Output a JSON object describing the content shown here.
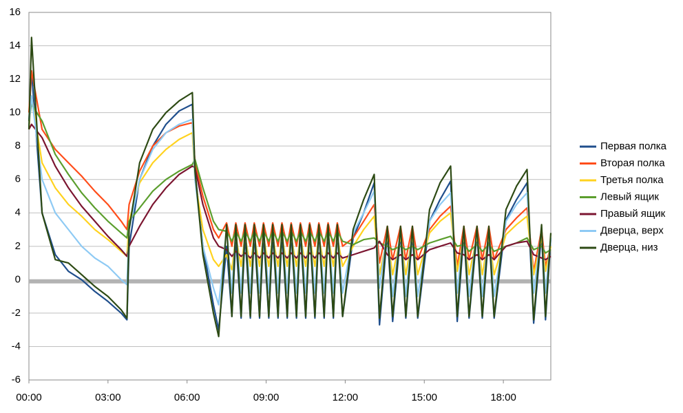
{
  "chart_data": {
    "type": "line",
    "x": [
      0,
      0.1,
      0.5,
      1,
      1.5,
      2,
      2.5,
      3,
      3.5,
      3.72,
      3.8,
      4.2,
      4.7,
      5.2,
      5.7,
      6.2,
      6.3,
      6.6,
      7.0,
      7.2,
      7.5,
      7.7,
      7.85,
      8.05,
      8.2,
      8.4,
      8.55,
      8.75,
      8.9,
      9.1,
      9.25,
      9.45,
      9.6,
      9.8,
      9.95,
      10.15,
      10.3,
      10.5,
      10.65,
      10.85,
      11.0,
      11.2,
      11.35,
      11.55,
      11.7,
      11.9,
      12.3,
      12.7,
      13.1,
      13.3,
      13.6,
      13.8,
      14.1,
      14.3,
      14.55,
      14.75,
      15.2,
      15.6,
      16.0,
      16.25,
      16.5,
      16.7,
      17.0,
      17.2,
      17.45,
      17.65,
      18.1,
      18.5,
      18.9,
      19.15,
      19.45,
      19.6,
      19.8
    ],
    "xlim": [
      0,
      19.8
    ],
    "xticks": [
      {
        "value": 0,
        "label": "00:00"
      },
      {
        "value": 3,
        "label": "03:00"
      },
      {
        "value": 6,
        "label": "06:00"
      },
      {
        "value": 9,
        "label": "09:00"
      },
      {
        "value": 12,
        "label": "12:00"
      },
      {
        "value": 15,
        "label": "15:00"
      },
      {
        "value": 18,
        "label": "18:00"
      }
    ],
    "ylim": [
      -6,
      16
    ],
    "yticks": [
      -6,
      -4,
      -2,
      0,
      2,
      4,
      6,
      8,
      10,
      12,
      14,
      16
    ],
    "grid": true,
    "hline": -0.1,
    "legend": "right",
    "series": [
      {
        "name": "Первая полка",
        "color": "#1f4e8c",
        "values": [
          9.5,
          12.5,
          4,
          1.5,
          0.5,
          0,
          -0.7,
          -1.3,
          -2.0,
          -2.4,
          2,
          6,
          8,
          9.3,
          10.1,
          10.5,
          6.5,
          2,
          -1.5,
          -3.0,
          2.0,
          -2.2,
          2.5,
          -2.3,
          2.7,
          -2.3,
          2.8,
          -2.3,
          2.8,
          -2.3,
          2.8,
          -2.3,
          2.8,
          -2.3,
          2.9,
          -2.3,
          2.9,
          -2.3,
          3.0,
          -2.3,
          3.0,
          -2.3,
          3.0,
          -2.3,
          3.0,
          -2.2,
          2.5,
          4,
          5.8,
          -2.7,
          2.8,
          -2.5,
          2.8,
          -2.3,
          2.8,
          -2.3,
          3.5,
          4.8,
          5.9,
          -2.5,
          2.8,
          -2.3,
          2.8,
          -2.3,
          2.8,
          -2.3,
          3.6,
          4.8,
          5.8,
          -2.6,
          2.8,
          -2.4,
          2.5
        ]
      },
      {
        "name": "Вторая полка",
        "color": "#ff4d1a",
        "values": [
          10,
          12.5,
          9,
          7.8,
          7,
          6.2,
          5.3,
          4.5,
          3.5,
          3.0,
          4.5,
          6.5,
          8,
          8.8,
          9.2,
          9.4,
          7,
          5,
          3,
          2.5,
          3.4,
          2.0,
          3.4,
          2.0,
          3.4,
          2.0,
          3.4,
          2.0,
          3.4,
          2.0,
          3.4,
          2.0,
          3.4,
          2.0,
          3.4,
          2.0,
          3.4,
          2.0,
          3.4,
          2.0,
          3.4,
          2.0,
          3.4,
          2.0,
          3.4,
          2.0,
          2.5,
          3.5,
          4.5,
          1.0,
          3.2,
          1.2,
          3.2,
          1.2,
          3.2,
          1.2,
          3,
          3.8,
          4.4,
          0.8,
          3.2,
          1.2,
          3.2,
          1.2,
          3.2,
          1.2,
          3,
          3.7,
          4.3,
          0.5,
          3,
          0.8,
          2
        ]
      },
      {
        "name": "Третья полка",
        "color": "#ffd21f",
        "values": [
          9,
          11,
          7,
          5.5,
          4.5,
          3.8,
          3,
          2.4,
          1.7,
          1.4,
          3.5,
          5.8,
          7,
          7.8,
          8.4,
          8.8,
          6,
          3,
          1.2,
          0.8,
          1.5,
          0.6,
          2.6,
          0.8,
          2.6,
          0.8,
          2.6,
          0.8,
          2.6,
          0.8,
          2.6,
          0.8,
          2.6,
          0.8,
          2.6,
          0.8,
          2.6,
          0.8,
          2.6,
          0.8,
          2.6,
          0.8,
          2.6,
          0.8,
          2.6,
          0.8,
          2,
          3,
          3.8,
          0.3,
          2.6,
          0.3,
          2.6,
          0.3,
          2.6,
          0.3,
          2.8,
          3.5,
          4.0,
          0.5,
          2.6,
          0.3,
          2.6,
          0.3,
          2.6,
          0.3,
          2.7,
          3.3,
          3.8,
          0.3,
          2.5,
          0.5,
          2
        ]
      },
      {
        "name": "Левый ящик",
        "color": "#5b9e2d",
        "values": [
          9.5,
          10.5,
          9.5,
          7.5,
          6.3,
          5.2,
          4.3,
          3.5,
          2.8,
          2.5,
          3.5,
          4.3,
          5.3,
          6,
          6.5,
          6.9,
          7.2,
          5.5,
          3.5,
          3.0,
          2.9,
          2.3,
          2.9,
          2.3,
          2.9,
          2.3,
          2.9,
          2.3,
          2.9,
          2.3,
          2.9,
          2.3,
          2.9,
          2.3,
          2.9,
          2.3,
          2.9,
          2.3,
          2.9,
          2.3,
          2.9,
          2.3,
          2.9,
          2.3,
          2.9,
          2.3,
          2.1,
          2.4,
          2.5,
          2.2,
          2.0,
          1.8,
          2.0,
          1.8,
          2.0,
          1.8,
          2.2,
          2.4,
          2.6,
          2.0,
          2.1,
          1.7,
          2.1,
          1.7,
          2.1,
          1.7,
          2.0,
          2.2,
          2.5,
          1.8,
          2.0,
          1.6,
          1.8
        ]
      },
      {
        "name": "Правый ящик",
        "color": "#7b1530",
        "values": [
          9,
          9.3,
          8.5,
          6.8,
          5.5,
          4.4,
          3.5,
          2.6,
          1.8,
          1.4,
          2.0,
          3.2,
          4.5,
          5.5,
          6.3,
          6.8,
          6.7,
          4.5,
          2.5,
          2.0,
          1.8,
          1.4,
          1.7,
          1.4,
          1.6,
          1.3,
          1.6,
          1.3,
          1.6,
          1.3,
          1.6,
          1.3,
          1.6,
          1.3,
          1.6,
          1.3,
          1.6,
          1.3,
          1.6,
          1.3,
          1.6,
          1.3,
          1.6,
          1.3,
          1.6,
          1.3,
          1.5,
          1.7,
          1.9,
          2.3,
          1.5,
          1.2,
          1.5,
          1.2,
          1.5,
          1.2,
          1.8,
          2.0,
          2.2,
          1.6,
          1.5,
          1.2,
          1.5,
          1.2,
          1.5,
          1.2,
          2.0,
          2.2,
          2.3,
          1.5,
          1.3,
          1.2,
          1.4
        ]
      },
      {
        "name": "Дверца, верх",
        "color": "#8ecaf4",
        "values": [
          9.2,
          11,
          6,
          4,
          3,
          2,
          1.3,
          0.8,
          0,
          -0.3,
          3,
          6,
          7.8,
          8.8,
          9.3,
          9.6,
          6,
          2,
          -0.5,
          -1.5,
          3.0,
          -0.8,
          3.0,
          -0.8,
          3.0,
          -0.8,
          3.0,
          -0.8,
          3.0,
          -0.8,
          3.0,
          -0.8,
          3.0,
          -0.8,
          3.0,
          -0.8,
          3.0,
          -0.8,
          3.0,
          -0.8,
          3.0,
          -0.8,
          3.0,
          -0.8,
          3.0,
          -0.8,
          2.8,
          4,
          5.3,
          -0.5,
          3,
          -1,
          3,
          -1,
          3,
          -1,
          3.5,
          4.5,
          5.2,
          -0.8,
          3,
          -1,
          3,
          -1,
          3,
          -1,
          3.5,
          4.5,
          5.2,
          -0.8,
          3,
          -0.8,
          2.5
        ]
      },
      {
        "name": "Дверца, низ",
        "color": "#2d4a14",
        "values": [
          9,
          14.5,
          4,
          1.2,
          1,
          0.3,
          -0.4,
          -1.0,
          -1.8,
          -2.3,
          3,
          7,
          9,
          10,
          10.7,
          11.2,
          6.5,
          1.5,
          -2,
          -3.4,
          3.3,
          -2.2,
          3.3,
          -2.2,
          3.3,
          -2.2,
          3.3,
          -2.2,
          3.3,
          -2.2,
          3.3,
          -2.2,
          3.3,
          -2.2,
          3.3,
          -2.2,
          3.3,
          -2.2,
          3.3,
          -2.2,
          3.3,
          -2.2,
          3.3,
          -2.2,
          3.3,
          -2.2,
          3,
          4.8,
          6.3,
          -2.3,
          3.2,
          -2.2,
          3.2,
          -2.2,
          3.2,
          -2.2,
          4.2,
          5.8,
          6.8,
          -2.2,
          3.2,
          -2.2,
          3.2,
          -2.2,
          3.2,
          -2.2,
          4.2,
          5.6,
          6.6,
          -2.4,
          3.3,
          -2.2,
          2.8
        ]
      }
    ]
  }
}
